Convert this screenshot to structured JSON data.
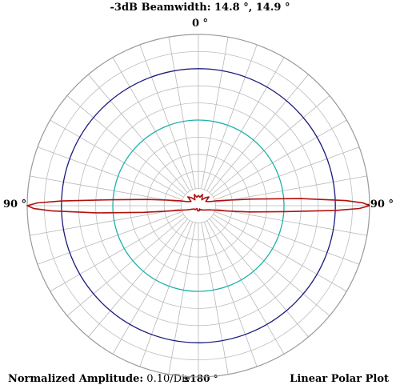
{
  "chart_data": {
    "type": "polar_line",
    "title": "-3dB Beamwidth: 14.8 °, 14.9 °",
    "angle_labels": {
      "top": "0 °",
      "left": "90 °",
      "right": "-90 °",
      "bottom": "±180 °"
    },
    "footer_left_label": "Normalized Amplitude:",
    "footer_left_value": "0.10/Div",
    "footer_right": "Linear Polar Plot",
    "radial_range": [
      0,
      1.0
    ],
    "radial_division": 0.1,
    "angular_division_deg": 10,
    "grid": true,
    "reference_circles": [
      {
        "radius": 0.8,
        "color": "#1a1a80"
      },
      {
        "radius": 0.5,
        "color": "#20b2aa"
      }
    ],
    "series": [
      {
        "color": "#b01010",
        "angles_deg": [
          0,
          10,
          20,
          30,
          40,
          50,
          60,
          70,
          75,
          80,
          83,
          86,
          88,
          89,
          90,
          91,
          92,
          94,
          97,
          100,
          105,
          110,
          120,
          130,
          140,
          150,
          160,
          170,
          180,
          190,
          200,
          210,
          220,
          230,
          240,
          250,
          255,
          260,
          263,
          266,
          268,
          269,
          270,
          271,
          272,
          274,
          277,
          280,
          285,
          290,
          300,
          310,
          320,
          330,
          340,
          350
        ],
        "values": [
          0.06,
          0.05,
          0.07,
          0.04,
          0.06,
          0.08,
          0.05,
          0.07,
          0.11,
          0.19,
          0.3,
          0.5,
          0.8,
          0.94,
          1.0,
          0.96,
          0.86,
          0.6,
          0.32,
          0.18,
          0.1,
          0.07,
          0.04,
          0.03,
          0.03,
          0.02,
          0.02,
          0.03,
          0.03,
          0.03,
          0.02,
          0.03,
          0.03,
          0.04,
          0.05,
          0.07,
          0.1,
          0.18,
          0.3,
          0.5,
          0.8,
          0.94,
          1.0,
          0.96,
          0.86,
          0.6,
          0.32,
          0.19,
          0.11,
          0.07,
          0.05,
          0.08,
          0.06,
          0.04,
          0.07,
          0.05
        ]
      }
    ]
  }
}
